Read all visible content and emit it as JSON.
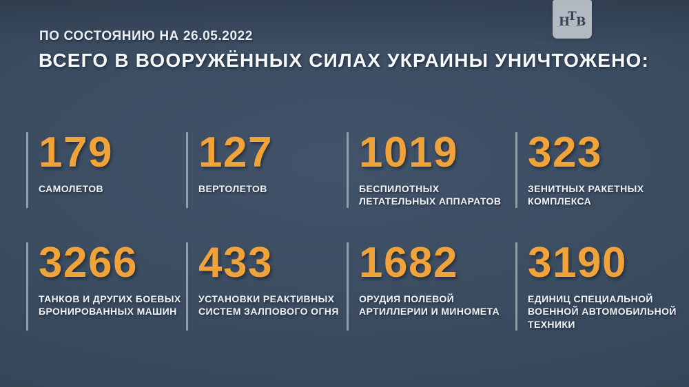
{
  "brand": {
    "logo_letters": [
      "Н",
      "Т",
      "В"
    ]
  },
  "header": {
    "date_line": "ПО СОСТОЯНИЮ НА 26.05.2022",
    "title_white": "ВСЕГО В ВООРУЖЁННЫХ СИЛАХ УКРАИНЫ",
    "title_orange": "УНИЧТОЖЕНО:"
  },
  "colors": {
    "background": "#3a4a5e",
    "accent_orange": "#f0a339",
    "text_light": "#f0f4f8",
    "divider": "#a8b3bf",
    "logo_box": "#bdc3ca",
    "logo_letters": "#334156"
  },
  "stats": [
    {
      "value": "179",
      "label_lines": [
        "САМОЛЕТОВ"
      ]
    },
    {
      "value": "127",
      "label_lines": [
        "ВЕРТОЛЕТОВ"
      ]
    },
    {
      "value": "1019",
      "label_lines": [
        "БЕСПИЛОТНЫХ",
        "ЛЕТАТЕЛЬНЫХ АППАРАТОВ"
      ]
    },
    {
      "value": "323",
      "label_lines": [
        "ЗЕНИТНЫХ РАКЕТНЫХ",
        "КОМПЛЕКСА"
      ]
    },
    {
      "value": "3266",
      "label_lines": [
        "ТАНКОВ И ДРУГИХ БОЕВЫХ",
        "БРОНИРОВАННЫХ МАШИН"
      ]
    },
    {
      "value": "433",
      "label_lines": [
        "УСТАНОВКИ РЕАКТИВНЫХ",
        "СИСТЕМ ЗАЛПОВОГО ОГНЯ"
      ]
    },
    {
      "value": "1682",
      "label_lines": [
        "ОРУДИЯ ПОЛЕВОЙ",
        "АРТИЛЛЕРИИ И МИНОМЕТА"
      ]
    },
    {
      "value": "3190",
      "label_lines": [
        "ЕДИНИЦ СПЕЦИАЛЬНОЙ",
        "ВОЕННОЙ АВТОМОБИЛЬНОЙ",
        "ТЕХНИКИ"
      ]
    }
  ],
  "chart_data": {
    "type": "table",
    "title": "ВСЕГО В ВООРУЖЁННЫХ СИЛАХ УКРАИНЫ УНИЧТОЖЕНО:",
    "subtitle": "ПО СОСТОЯНИЮ НА 26.05.2022",
    "categories": [
      "САМОЛЕТОВ",
      "ВЕРТОЛЕТОВ",
      "БЕСПИЛОТНЫХ ЛЕТАТЕЛЬНЫХ АППАРАТОВ",
      "ЗЕНИТНЫХ РАКЕТНЫХ КОМПЛЕКСА",
      "ТАНКОВ И ДРУГИХ БОЕВЫХ БРОНИРОВАННЫХ МАШИН",
      "УСТАНОВКИ РЕАКТИВНЫХ СИСТЕМ ЗАЛПОВОГО ОГНЯ",
      "ОРУДИЯ ПОЛЕВОЙ АРТИЛЛЕРИИ И МИНОМЕТА",
      "ЕДИНИЦ СПЕЦИАЛЬНОЙ ВОЕННОЙ АВТОМОБИЛЬНОЙ ТЕХНИКИ"
    ],
    "values": [
      179,
      127,
      1019,
      323,
      3266,
      433,
      1682,
      3190
    ],
    "legend": "none",
    "grid": "off",
    "layout": "2 rows x 4 columns of stat blocks"
  }
}
